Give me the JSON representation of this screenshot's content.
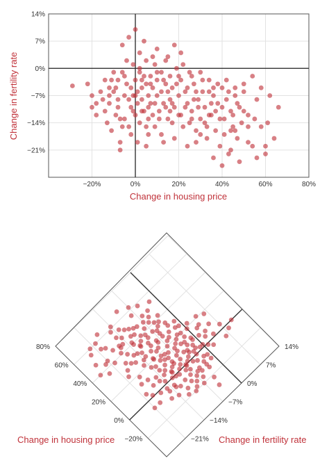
{
  "colors": {
    "marker": "#c0323a",
    "label": "#c0323a",
    "axis": "#333333",
    "grid": "#e2e2e2"
  },
  "chart_data": [
    {
      "type": "scatter",
      "title": "",
      "xlabel": "Change in housing price",
      "ylabel": "Change in fertility rate",
      "xlim": [
        -40,
        80
      ],
      "ylim": [
        -28,
        14
      ],
      "xticks": [
        -20,
        0,
        20,
        40,
        60,
        80
      ],
      "xtick_labels": [
        "−20%",
        "0%",
        "20%",
        "40%",
        "60%",
        "80%"
      ],
      "yticks": [
        -21,
        -14,
        -7,
        0,
        7,
        14
      ],
      "ytick_labels": [
        "−21%",
        "−14%",
        "−7%",
        "0%",
        "7%",
        "14%"
      ],
      "grid": true,
      "legend": "none",
      "points": [
        [
          -29,
          -4.5
        ],
        [
          -22,
          -4
        ],
        [
          -20,
          -7
        ],
        [
          -18,
          -9
        ],
        [
          -15,
          -8
        ],
        [
          -14,
          -11
        ],
        [
          -13,
          -14
        ],
        [
          -12,
          -5
        ],
        [
          -12,
          -9
        ],
        [
          -11,
          -3
        ],
        [
          -10,
          -6
        ],
        [
          -9,
          -12
        ],
        [
          -8,
          -3
        ],
        [
          -8,
          -10
        ],
        [
          -7,
          -19
        ],
        [
          -7,
          -21
        ],
        [
          -6,
          -1
        ],
        [
          -5,
          -7
        ],
        [
          -5,
          -13
        ],
        [
          -4,
          2
        ],
        [
          -4,
          -4
        ],
        [
          -3,
          -8
        ],
        [
          -3,
          -15
        ],
        [
          -2,
          -5
        ],
        [
          -2,
          -10
        ],
        [
          -1,
          1
        ],
        [
          -1,
          -7
        ],
        [
          0,
          -3
        ],
        [
          0,
          -12
        ],
        [
          1,
          -6
        ],
        [
          1,
          -9
        ],
        [
          2,
          -1
        ],
        [
          2,
          -14
        ],
        [
          3,
          -5
        ],
        [
          3,
          -8
        ],
        [
          4,
          -11
        ],
        [
          5,
          2
        ],
        [
          5,
          -4
        ],
        [
          6,
          -7
        ],
        [
          6,
          -13
        ],
        [
          7,
          -2
        ],
        [
          7,
          -9
        ],
        [
          8,
          -5
        ],
        [
          9,
          -15
        ],
        [
          10,
          -3
        ],
        [
          10,
          -7
        ],
        [
          11,
          -11
        ],
        [
          12,
          -1
        ],
        [
          12,
          -6
        ],
        [
          13,
          -9
        ],
        [
          14,
          -4
        ],
        [
          15,
          -13
        ],
        [
          16,
          -2
        ],
        [
          16,
          -8
        ],
        [
          17,
          -5
        ],
        [
          18,
          -10
        ],
        [
          19,
          0
        ],
        [
          20,
          -7
        ],
        [
          20,
          -12
        ],
        [
          21,
          -3
        ],
        [
          22,
          -15
        ],
        [
          23,
          -6
        ],
        [
          24,
          -9
        ],
        [
          25,
          -1
        ],
        [
          26,
          -11
        ],
        [
          27,
          -4
        ],
        [
          28,
          -16
        ],
        [
          29,
          -8
        ],
        [
          30,
          -13
        ],
        [
          31,
          -6
        ],
        [
          32,
          -10
        ],
        [
          33,
          -18
        ],
        [
          34,
          -3
        ],
        [
          35,
          -12
        ],
        [
          36,
          -7
        ],
        [
          37,
          -16
        ],
        [
          38,
          -9
        ],
        [
          39,
          -20
        ],
        [
          40,
          -5
        ],
        [
          41,
          -13
        ],
        [
          42,
          -8
        ],
        [
          43,
          -22
        ],
        [
          44,
          -11
        ],
        [
          45,
          -15
        ],
        [
          46,
          -7
        ],
        [
          47,
          -18
        ],
        [
          48,
          -10
        ],
        [
          49,
          -14
        ],
        [
          50,
          -6
        ],
        [
          52,
          -12
        ],
        [
          54,
          -20
        ],
        [
          56,
          -8
        ],
        [
          58,
          -15
        ],
        [
          60,
          -22
        ],
        [
          62,
          -7
        ],
        [
          64,
          -18
        ],
        [
          66,
          -10
        ],
        [
          -6,
          6
        ],
        [
          -3,
          8
        ],
        [
          0,
          10
        ],
        [
          2,
          4
        ],
        [
          4,
          7
        ],
        [
          8,
          3
        ],
        [
          10,
          5
        ],
        [
          14,
          2
        ],
        [
          18,
          6
        ],
        [
          22,
          1
        ],
        [
          26,
          -2
        ],
        [
          30,
          -1
        ],
        [
          34,
          -6
        ],
        [
          38,
          -4
        ],
        [
          42,
          -3
        ],
        [
          46,
          -5
        ],
        [
          50,
          -4
        ],
        [
          54,
          -2
        ],
        [
          58,
          -5
        ],
        [
          -10,
          -1
        ],
        [
          -14,
          -3
        ],
        [
          -16,
          -6
        ],
        [
          -2,
          -17
        ],
        [
          6,
          -17
        ],
        [
          12,
          -17
        ],
        [
          18,
          -18
        ],
        [
          24,
          -20
        ],
        [
          28,
          -19
        ],
        [
          36,
          -23
        ],
        [
          40,
          -25
        ],
        [
          44,
          -21
        ],
        [
          48,
          -24
        ],
        [
          52,
          -19
        ],
        [
          56,
          -23
        ],
        [
          60,
          -20
        ],
        [
          -8,
          -8
        ],
        [
          4,
          -2
        ],
        [
          9,
          -9
        ],
        [
          15,
          -6
        ],
        [
          19,
          -4
        ],
        [
          23,
          -10
        ],
        [
          27,
          -8
        ],
        [
          31,
          -3
        ],
        [
          35,
          -9
        ],
        [
          39,
          -13
        ],
        [
          43,
          -6
        ],
        [
          47,
          -9
        ],
        [
          1,
          -19
        ],
        [
          5,
          -15
        ],
        [
          11,
          -13
        ],
        [
          17,
          -14
        ],
        [
          21,
          -12
        ],
        [
          25,
          -14
        ],
        [
          29,
          -10
        ],
        [
          33,
          -15
        ],
        [
          37,
          -11
        ],
        [
          41,
          -17
        ],
        [
          45,
          -12
        ],
        [
          0,
          -7
        ],
        [
          3,
          -11
        ],
        [
          7,
          -4
        ],
        [
          13,
          -3
        ],
        [
          17,
          -9
        ],
        [
          20,
          -2
        ],
        [
          24,
          -5
        ],
        [
          28,
          -6
        ],
        [
          32,
          -14
        ],
        [
          -5,
          -2
        ],
        [
          -1,
          -11
        ],
        [
          2,
          0
        ],
        [
          6,
          -10
        ],
        [
          10,
          -1
        ],
        [
          14,
          -10
        ],
        [
          -12,
          -7
        ],
        [
          -9,
          -5
        ],
        [
          -7,
          -13
        ],
        [
          8,
          -12
        ],
        [
          16,
          -11
        ],
        [
          26,
          -13
        ],
        [
          30,
          -17
        ],
        [
          34,
          -12
        ],
        [
          46,
          -16
        ],
        [
          52,
          -15
        ],
        [
          -18,
          -12
        ],
        [
          -20,
          -10
        ],
        [
          3,
          -3
        ],
        [
          9,
          1
        ],
        [
          15,
          3
        ],
        [
          21,
          4
        ],
        [
          -11,
          -16
        ],
        [
          -6,
          -15
        ],
        [
          5,
          -20
        ],
        [
          13,
          -19
        ],
        [
          36,
          -5
        ],
        [
          40,
          -10
        ],
        [
          44,
          -16
        ],
        [
          50,
          -11
        ],
        [
          55,
          -13
        ],
        [
          61,
          -14
        ]
      ]
    },
    {
      "type": "scatter",
      "title": "",
      "xlabel": "Change in housing price",
      "ylabel": "Change in fertility rate",
      "projection": "rotated-45",
      "xlim": [
        -40,
        80
      ],
      "ylim": [
        -28,
        14
      ],
      "xticks": [
        -20,
        0,
        20,
        40,
        60,
        80
      ],
      "xtick_labels": [
        "−20%",
        "0%",
        "20%",
        "40%",
        "60%",
        "80%"
      ],
      "yticks": [
        -21,
        -14,
        -7,
        0,
        7,
        14
      ],
      "ytick_labels": [
        "−21%",
        "−14%",
        "−7%",
        "0%",
        "7%",
        "14%"
      ],
      "grid": true,
      "legend": "none",
      "points_ref": "same points as first chart"
    }
  ]
}
